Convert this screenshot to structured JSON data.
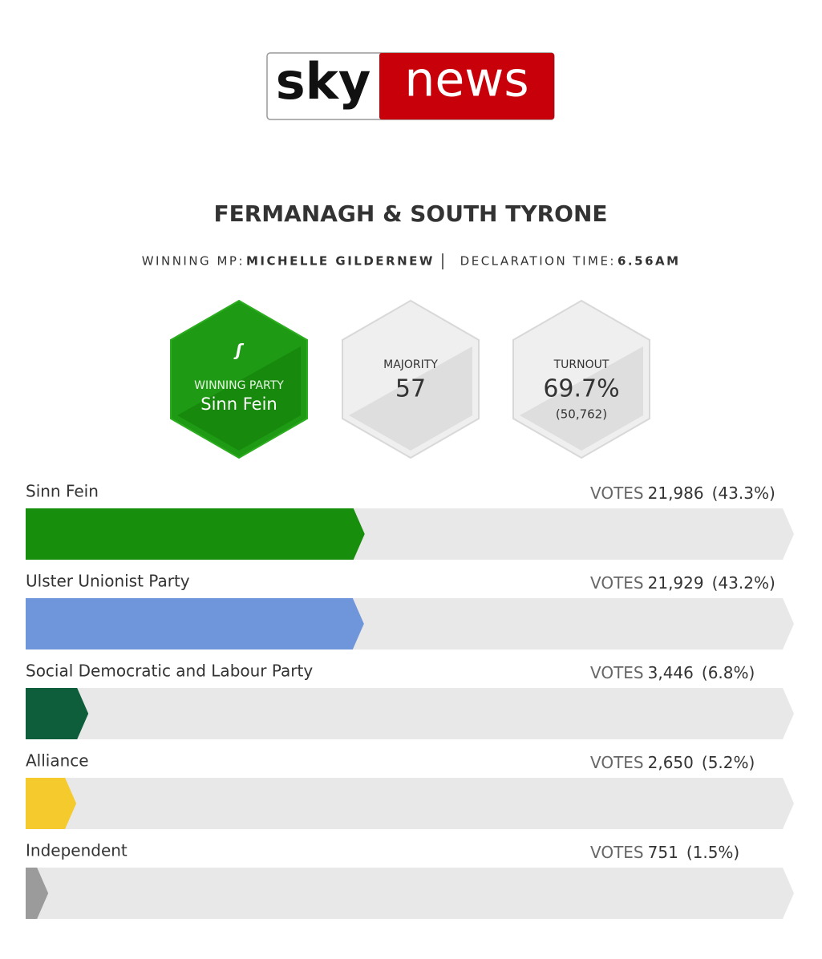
{
  "logo": {
    "left": "sky",
    "right": "news"
  },
  "title": "FERMANAGH & SOUTH TYRONE",
  "winning_mp": {
    "label": "WINNING MP:",
    "value": "MICHELLE GILDERNEW"
  },
  "declaration": {
    "label": "DECLARATION TIME:",
    "value": "6.56AM"
  },
  "tiles": {
    "winning_party": {
      "label": "WINNING PARTY",
      "value": "Sinn Fein"
    },
    "majority": {
      "label": "MAJORITY",
      "value": 57
    },
    "turnout": {
      "label": "TURNOUT",
      "value": "69.7%",
      "votes": "(50,762)"
    }
  },
  "results": {
    "votes_label": "VOTES",
    "parties": [
      {
        "name": "Sinn Fein",
        "votes": {
          "value": 21986,
          "label": "21,986"
        },
        "share": 43.3,
        "share_label": "(43.3%)",
        "color": "#178f0c"
      },
      {
        "name": "Ulster Unionist Party",
        "votes": {
          "value": 21929,
          "label": "21,929"
        },
        "share": 43.2,
        "share_label": "(43.2%)",
        "color": "#6f96db"
      },
      {
        "name": "Social Democratic and Labour Party",
        "votes": {
          "value": 3446,
          "label": "3,446"
        },
        "share": 6.8,
        "share_label": "(6.8%)",
        "color": "#0e5e3c"
      },
      {
        "name": "Alliance",
        "votes": {
          "value": 2650,
          "label": "2,650"
        },
        "share": 5.2,
        "share_label": "(5.2%)",
        "color": "#f5ca2c"
      },
      {
        "name": "Independent",
        "votes": {
          "value": 751,
          "label": "751"
        },
        "share": 1.5,
        "share_label": "(1.5%)",
        "color": "#9b9b9b"
      }
    ]
  }
}
